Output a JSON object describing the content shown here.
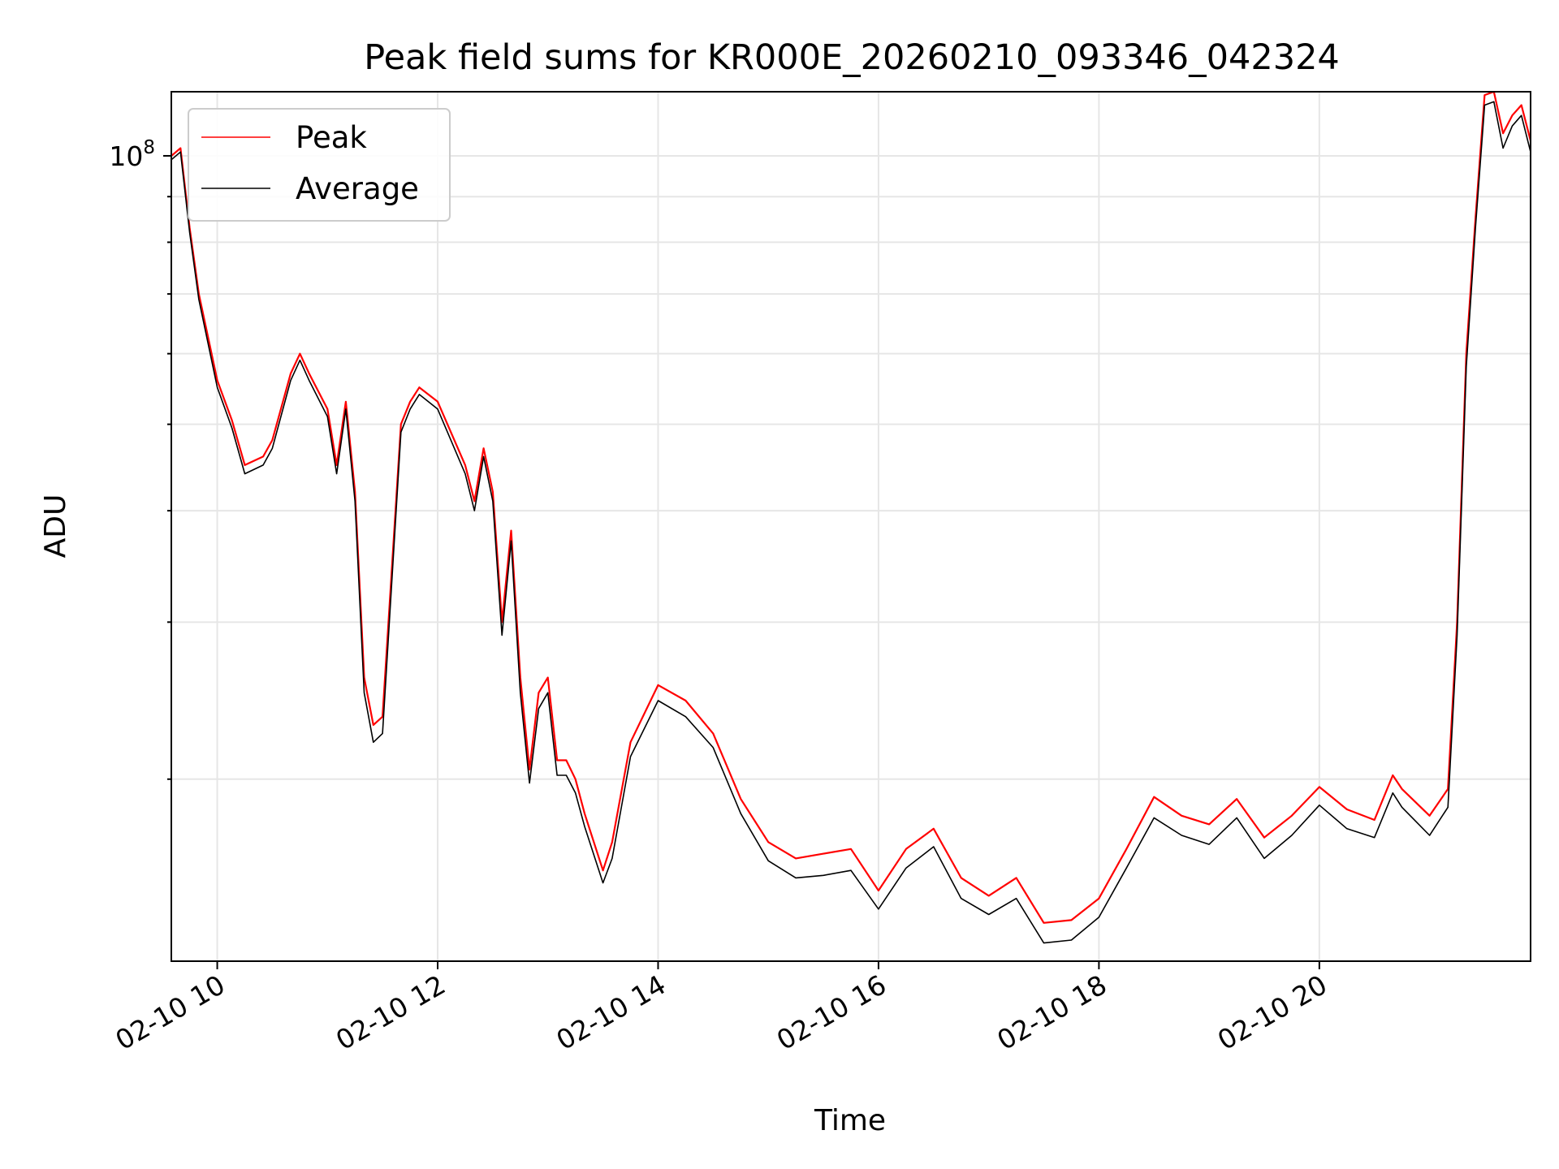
{
  "chart_data": {
    "type": "line",
    "title": "Peak field sums for KR000E_20260210_093346_042324",
    "xlabel": "Time",
    "ylabel": "ADU",
    "y_scale": "log",
    "ylim": [
      12500000,
      118000000
    ],
    "xlim": [
      "2026-02-10 09:35",
      "2026-02-10 21:55"
    ],
    "x_tick_labels": [
      "02-10 10",
      "02-10 12",
      "02-10 14",
      "02-10 16",
      "02-10 18",
      "02-10 20"
    ],
    "x_tick_values": [
      "2026-02-10 10:00",
      "2026-02-10 12:00",
      "2026-02-10 14:00",
      "2026-02-10 16:00",
      "2026-02-10 18:00",
      "2026-02-10 20:00"
    ],
    "y_major_tick_labels": [
      {
        "base": "10",
        "exp": "8"
      }
    ],
    "y_major_tick_values": [
      100000000
    ],
    "y_minor_tick_values": [
      20000000,
      30000000,
      40000000,
      50000000,
      60000000,
      70000000,
      80000000,
      90000000
    ],
    "grid": true,
    "legend_position": "upper-left",
    "x": [
      "2026-02-10 09:35",
      "2026-02-10 09:40",
      "2026-02-10 09:45",
      "2026-02-10 09:50",
      "2026-02-10 10:00",
      "2026-02-10 10:08",
      "2026-02-10 10:15",
      "2026-02-10 10:25",
      "2026-02-10 10:30",
      "2026-02-10 10:40",
      "2026-02-10 10:45",
      "2026-02-10 10:50",
      "2026-02-10 11:00",
      "2026-02-10 11:05",
      "2026-02-10 11:10",
      "2026-02-10 11:15",
      "2026-02-10 11:20",
      "2026-02-10 11:25",
      "2026-02-10 11:30",
      "2026-02-10 11:40",
      "2026-02-10 11:45",
      "2026-02-10 11:50",
      "2026-02-10 12:00",
      "2026-02-10 12:15",
      "2026-02-10 12:20",
      "2026-02-10 12:25",
      "2026-02-10 12:30",
      "2026-02-10 12:35",
      "2026-02-10 12:40",
      "2026-02-10 12:45",
      "2026-02-10 12:50",
      "2026-02-10 12:55",
      "2026-02-10 13:00",
      "2026-02-10 13:05",
      "2026-02-10 13:10",
      "2026-02-10 13:15",
      "2026-02-10 13:20",
      "2026-02-10 13:30",
      "2026-02-10 13:35",
      "2026-02-10 13:45",
      "2026-02-10 14:00",
      "2026-02-10 14:15",
      "2026-02-10 14:30",
      "2026-02-10 14:45",
      "2026-02-10 15:00",
      "2026-02-10 15:15",
      "2026-02-10 15:30",
      "2026-02-10 15:45",
      "2026-02-10 16:00",
      "2026-02-10 16:15",
      "2026-02-10 16:30",
      "2026-02-10 16:45",
      "2026-02-10 17:00",
      "2026-02-10 17:15",
      "2026-02-10 17:30",
      "2026-02-10 17:45",
      "2026-02-10 18:00",
      "2026-02-10 18:15",
      "2026-02-10 18:30",
      "2026-02-10 18:45",
      "2026-02-10 19:00",
      "2026-02-10 19:15",
      "2026-02-10 19:30",
      "2026-02-10 19:45",
      "2026-02-10 20:00",
      "2026-02-10 20:15",
      "2026-02-10 20:30",
      "2026-02-10 20:40",
      "2026-02-10 20:45",
      "2026-02-10 21:00",
      "2026-02-10 21:10",
      "2026-02-10 21:15",
      "2026-02-10 21:20",
      "2026-02-10 21:25",
      "2026-02-10 21:30",
      "2026-02-10 21:35",
      "2026-02-10 21:40",
      "2026-02-10 21:45",
      "2026-02-10 21:50",
      "2026-02-10 21:55"
    ],
    "series": [
      {
        "name": "Peak",
        "color": "#ff0000",
        "values": [
          100000000,
          102000000,
          83000000,
          70000000,
          56000000,
          50500000,
          45000000,
          46000000,
          48000000,
          57000000,
          60000000,
          57000000,
          52000000,
          45000000,
          53000000,
          42000000,
          26000000,
          23000000,
          23500000,
          50000000,
          53000000,
          55000000,
          53000000,
          45000000,
          41000000,
          47000000,
          42000000,
          30000000,
          38000000,
          26000000,
          20500000,
          25000000,
          26000000,
          21000000,
          21000000,
          20000000,
          18300000,
          15800000,
          17000000,
          22000000,
          25500000,
          24500000,
          22500000,
          19000000,
          17000000,
          16300000,
          16500000,
          16700000,
          15000000,
          16700000,
          17600000,
          15500000,
          14800000,
          15500000,
          13800000,
          13900000,
          14700000,
          16700000,
          19100000,
          18200000,
          17800000,
          19000000,
          17200000,
          18200000,
          19600000,
          18500000,
          18000000,
          20200000,
          19500000,
          18200000,
          19500000,
          30000000,
          60000000,
          85000000,
          117000000,
          118000000,
          106000000,
          111000000,
          114000000,
          104000000
        ]
      },
      {
        "name": "Average",
        "color": "#000000",
        "values": [
          99000000,
          101000000,
          82000000,
          69000000,
          55000000,
          49500000,
          44000000,
          45000000,
          47000000,
          56000000,
          59000000,
          56000000,
          51000000,
          44000000,
          52000000,
          41000000,
          25000000,
          22000000,
          22500000,
          49000000,
          52000000,
          54000000,
          52000000,
          44000000,
          40000000,
          46000000,
          41000000,
          29000000,
          37000000,
          25000000,
          19800000,
          24000000,
          25000000,
          20200000,
          20200000,
          19300000,
          17700000,
          15300000,
          16300000,
          21200000,
          24500000,
          23500000,
          21700000,
          18300000,
          16200000,
          15500000,
          15600000,
          15800000,
          14300000,
          15900000,
          16800000,
          14700000,
          14100000,
          14700000,
          13100000,
          13200000,
          14000000,
          15900000,
          18100000,
          17300000,
          16900000,
          18100000,
          16300000,
          17300000,
          18700000,
          17600000,
          17200000,
          19300000,
          18600000,
          17300000,
          18600000,
          29000000,
          58000000,
          83000000,
          114000000,
          115000000,
          102000000,
          108000000,
          111000000,
          101000000
        ]
      }
    ]
  }
}
